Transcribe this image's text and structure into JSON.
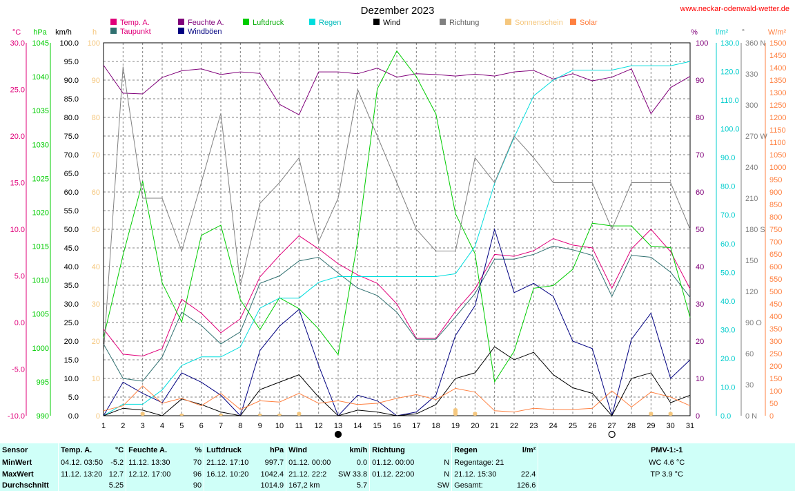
{
  "site_url": "www.neckar-odenwald-wetter.de",
  "chart_data": {
    "type": "line",
    "title": "Dezember 2023",
    "x": [
      1,
      2,
      3,
      4,
      5,
      6,
      7,
      8,
      9,
      10,
      11,
      12,
      13,
      14,
      15,
      16,
      17,
      18,
      19,
      20,
      21,
      22,
      23,
      24,
      25,
      26,
      27,
      28,
      29,
      30,
      31
    ],
    "xlim": [
      1,
      31
    ],
    "grid": true,
    "legend_position": "top",
    "axes": {
      "temp": {
        "unit": "°C",
        "min": -10,
        "max": 30,
        "ticks": [
          "30.0",
          "25.0",
          "20.0",
          "15.0",
          "10.0",
          "5.0",
          "0.0",
          "-5.0",
          "-10.0"
        ],
        "color": "#e0007a"
      },
      "pressure": {
        "unit": "hPa",
        "min": 990,
        "max": 1045,
        "ticks": [
          "1045",
          "1040",
          "1035",
          "1030",
          "1025",
          "1020",
          "1015",
          "1010",
          "1005",
          "1000",
          "995",
          "990"
        ],
        "color": "#00cc00"
      },
      "wind": {
        "unit": "km/h",
        "min": 0,
        "max": 100,
        "ticks": [
          "100.0",
          "95.0",
          "90.0",
          "85.0",
          "80.0",
          "75.0",
          "70.0",
          "65.0",
          "60.0",
          "55.0",
          "50.0",
          "45.0",
          "40.0",
          "35.0",
          "30.0",
          "25.0",
          "20.0",
          "15.0",
          "10.0",
          "5.0",
          "0.0"
        ],
        "color": "#000000"
      },
      "sunshine": {
        "unit": "h",
        "min": 0,
        "max": 100,
        "ticks": [
          "100",
          "90",
          "80",
          "70",
          "60",
          "50",
          "40",
          "30",
          "20",
          "10",
          "0"
        ],
        "color": "#f5c77e"
      },
      "humidity": {
        "unit": "%",
        "min": 0,
        "max": 100,
        "ticks": [
          "100",
          "90",
          "80",
          "70",
          "60",
          "50",
          "40",
          "30",
          "20",
          "10",
          "0"
        ],
        "color": "#80007a"
      },
      "rain": {
        "unit": "l/m²",
        "min": 0,
        "max": 130,
        "ticks": [
          "130.0",
          "120.0",
          "110.0",
          "100.0",
          "90.0",
          "80.0",
          "70.0",
          "60.0",
          "50.0",
          "40.0",
          "30.0",
          "20.0",
          "10.0",
          "0.0"
        ],
        "color": "#00cccc"
      },
      "direction": {
        "unit": "°",
        "min": 0,
        "max": 360,
        "ticks": [
          {
            "v": 360,
            "t": "360 N"
          },
          {
            "v": 330,
            "t": "330"
          },
          {
            "v": 300,
            "t": "300"
          },
          {
            "v": 270,
            "t": "270 W"
          },
          {
            "v": 240,
            "t": "240"
          },
          {
            "v": 210,
            "t": "210"
          },
          {
            "v": 180,
            "t": "180 S"
          },
          {
            "v": 150,
            "t": "150"
          },
          {
            "v": 120,
            "t": "120"
          },
          {
            "v": 90,
            "t": "90  O"
          },
          {
            "v": 60,
            "t": "60"
          },
          {
            "v": 30,
            "t": "30"
          },
          {
            "v": 0,
            "t": "0  N"
          }
        ],
        "color": "#808080"
      },
      "solar": {
        "unit": "W/m²",
        "min": 0,
        "max": 1500,
        "ticks": [
          "1500",
          "1450",
          "1400",
          "1350",
          "1300",
          "1250",
          "1200",
          "1150",
          "1100",
          "1050",
          "1000",
          "950",
          "900",
          "850",
          "800",
          "750",
          "700",
          "650",
          "600",
          "550",
          "500",
          "450",
          "400",
          "350",
          "300",
          "250",
          "200",
          "150",
          "100",
          "50",
          "0"
        ],
        "color": "#ff8040"
      }
    },
    "series": [
      {
        "name": "Temp. A.",
        "axis": "temp",
        "color": "#e0007a",
        "values": [
          -0.7,
          -3.4,
          -3.6,
          -2.8,
          2.5,
          1.0,
          -1.1,
          0.4,
          4.9,
          7.2,
          9.3,
          7.9,
          6.3,
          5.1,
          4.2,
          2.0,
          -1.7,
          -1.7,
          1.2,
          3.6,
          7.3,
          7.1,
          7.7,
          9.0,
          8.3,
          8.0,
          3.7,
          7.9,
          10.0,
          7.6,
          3.6
        ]
      },
      {
        "name": "Feuchte A.",
        "axis": "humidity",
        "color": "#80007a",
        "values": [
          94,
          86.5,
          86.3,
          90.7,
          92.5,
          93,
          91.5,
          92.2,
          91.8,
          83.5,
          80.7,
          92.2,
          92.2,
          91.7,
          93.2,
          90.8,
          91.7,
          91.5,
          91.1,
          91.6,
          91.1,
          92.2,
          92.6,
          90.3,
          91.7,
          89.8,
          90.8,
          93,
          81,
          88,
          91
        ]
      },
      {
        "name": "Taupunkt",
        "axis": "temp",
        "color": "#307070",
        "values": [
          -2.3,
          -6.0,
          -6.3,
          -3.7,
          1.1,
          -0.3,
          -2.3,
          -1.0,
          4.2,
          5.0,
          6.6,
          7.0,
          5.3,
          3.7,
          2.9,
          1.1,
          -1.8,
          -1.8,
          0.6,
          3.1,
          6.8,
          6.8,
          7.3,
          8.2,
          7.8,
          7.2,
          2.8,
          7.2,
          7.0,
          5.4,
          2.7
        ]
      },
      {
        "name": "Windböen",
        "axis": "wind",
        "color": "#000080",
        "values": [
          0,
          9,
          6,
          3.5,
          11.5,
          9,
          5.5,
          0,
          17.5,
          24,
          28.5,
          13.5,
          0,
          5.5,
          4,
          0,
          1,
          5.5,
          21.5,
          29.5,
          50,
          33,
          35.5,
          32,
          20,
          18,
          0,
          20.5,
          27.5,
          10,
          15
        ]
      },
      {
        "name": "Luftdruck",
        "axis": "pressure",
        "color": "#00cc00",
        "values": [
          1001.5,
          1013.7,
          1024.6,
          1009.6,
          1003.8,
          1016.6,
          1018.1,
          1007.1,
          1002.7,
          1007.4,
          1005.8,
          1002.8,
          999.0,
          1015.8,
          1038.2,
          1043.8,
          1040.0,
          1034.5,
          1019.8,
          1013.9,
          995.0,
          999.5,
          1008.8,
          1009.2,
          1011.6,
          1018.4,
          1018.0,
          1018.0,
          1015.0,
          1014.8,
          1004.5
        ]
      },
      {
        "name": "Regen",
        "axis": "rain",
        "color": "#00dddd",
        "values": [
          0,
          4,
          4,
          9,
          17.5,
          20.5,
          20.5,
          24,
          37.5,
          41,
          41,
          46.5,
          48.5,
          48.5,
          48.5,
          48.5,
          48.5,
          48.5,
          49.5,
          59,
          81,
          97,
          111.5,
          117,
          120.5,
          120.5,
          120.5,
          122,
          122,
          122,
          123.5
        ]
      },
      {
        "name": "Wind",
        "axis": "wind",
        "color": "#000000",
        "values": [
          0,
          2,
          1.5,
          0,
          4.5,
          3,
          1,
          0,
          7,
          9,
          11,
          5,
          0,
          1.5,
          1,
          0,
          0.5,
          3,
          10,
          11.5,
          18.5,
          15,
          17,
          11,
          7.5,
          6,
          0,
          10,
          11.5,
          3.5,
          5.5
        ]
      },
      {
        "name": "Richtung",
        "axis": "direction",
        "color": "#808080",
        "values": [
          60,
          337,
          210,
          210,
          159,
          225,
          292,
          126,
          205,
          225,
          249,
          168,
          210,
          315,
          270,
          225,
          180,
          159,
          159,
          249,
          225,
          270,
          249,
          225,
          225,
          225,
          180,
          225,
          225,
          225,
          180
        ]
      },
      {
        "name": "Sonnenschein",
        "axis": "sunshine",
        "color": "#f5c77e",
        "values": [
          0,
          0,
          1,
          0,
          0.5,
          0,
          0.5,
          0,
          0.5,
          0.5,
          1,
          0,
          0,
          0,
          0,
          0,
          0,
          0,
          2,
          1,
          0,
          0,
          0,
          0,
          0,
          0,
          0,
          0,
          1,
          1,
          0
        ]
      },
      {
        "name": "Solar",
        "axis": "solar",
        "color": "#ff8040",
        "values": [
          20,
          40,
          120,
          50,
          70,
          40,
          90,
          25,
          60,
          55,
          90,
          50,
          60,
          45,
          50,
          70,
          85,
          65,
          110,
          95,
          20,
          15,
          30,
          25,
          25,
          30,
          100,
          35,
          95,
          75,
          40
        ]
      }
    ],
    "moon_phases": [
      {
        "day": 13,
        "phase": "new"
      },
      {
        "day": 27,
        "phase": "full"
      }
    ]
  },
  "legend": [
    {
      "label": "Temp. A.",
      "color": "#e0007a",
      "text_color": "#e0007a"
    },
    {
      "label": "Feuchte A.",
      "color": "#80007a",
      "text_color": "#80007a"
    },
    {
      "label": "Luftdruck",
      "color": "#00cc00",
      "text_color": "#00aa00"
    },
    {
      "label": "Regen",
      "color": "#00dddd",
      "text_color": "#00bbbb"
    },
    {
      "label": "Wind",
      "color": "#000000",
      "text_color": "#000000"
    },
    {
      "label": "Richtung",
      "color": "#808080",
      "text_color": "#606060"
    },
    {
      "label": "Sonnenschein",
      "color": "#f5c77e",
      "text_color": "#f5c77e"
    },
    {
      "label": "Solar",
      "color": "#ff8040",
      "text_color": "#ff8040"
    },
    {
      "label": "Taupunkt",
      "color": "#307070",
      "text_color": "#e0007a"
    },
    {
      "label": "Windböen",
      "color": "#000080",
      "text_color": "#000080"
    }
  ],
  "stats": {
    "headers": {
      "sensor": "Sensor",
      "temp": "Temp. A.",
      "temp_unit": "°C",
      "hum": "Feuchte A.",
      "hum_unit": "%",
      "press": "Luftdruck",
      "press_unit": "hPa",
      "wind": "Wind",
      "wind_unit": "km/h",
      "dir": "Richtung",
      "rain": "Regen",
      "rain_unit": "l/m²",
      "pmv": "PMV-1:-1"
    },
    "rows": [
      {
        "label": "MinWert",
        "temp_date": "04.12.  03:50",
        "temp_val": "-5.2",
        "hum_date": "11.12.  13:30",
        "hum_val": "70",
        "press_date": "21.12.  17:10",
        "press_val": "997.7",
        "wind_date": "01.12.  00:00",
        "wind_val": "0.0",
        "dir_date": "01.12.  00:00",
        "dir_val": "N",
        "rain_text": "Regentage: 21",
        "rain_val": "",
        "pmv": "WC 4.6 °C"
      },
      {
        "label": "MaxWert",
        "temp_date": "11.12.  13:20",
        "temp_val": "12.7",
        "hum_date": "12.12.  17:00",
        "hum_val": "96",
        "press_date": "16.12.  10:20",
        "press_val": "1042.4",
        "wind_date": "21.12.  22:2",
        "wind_val": "SW 33.8",
        "dir_date": "01.12.  22:00",
        "dir_val": "N",
        "rain_text": "21.12.  15:30",
        "rain_val": "22.4",
        "pmv": "TP 3.9 °C"
      },
      {
        "label": "Durchschnitt",
        "temp_date": "",
        "temp_val": "5.25",
        "hum_date": "",
        "hum_val": "90",
        "press_date": "",
        "press_val": "1014.9",
        "wind_date": "167,2 km",
        "wind_val": "5.7",
        "dir_date": "",
        "dir_val": "SW",
        "rain_text": "Gesamt:",
        "rain_val": "126.6",
        "pmv": ""
      }
    ]
  }
}
